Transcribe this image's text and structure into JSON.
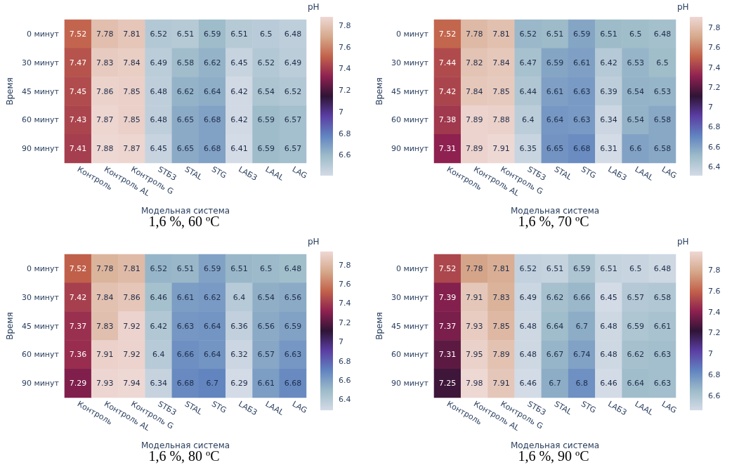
{
  "chart_data": [
    {
      "type": "heatmap",
      "title": "1,6 %, 60 ºC",
      "xlabel": "Модельная система",
      "ylabel": "Время",
      "clabel": "pH",
      "categories": [
        "Контроль",
        "Контроль AL",
        "Контроль G",
        "STБЗ",
        "STAL",
        "STG",
        "LAБЗ",
        "LAAL",
        "LAG"
      ],
      "y_categories": [
        "0 минут",
        "30 минут",
        "45 минут",
        "60 минут",
        "90 минут"
      ],
      "cells": [
        [
          7.52,
          7.78,
          7.81,
          6.52,
          6.51,
          6.59,
          6.51,
          6.5,
          6.48
        ],
        [
          7.47,
          7.83,
          7.84,
          6.49,
          6.58,
          6.62,
          6.45,
          6.52,
          6.49
        ],
        [
          7.45,
          7.86,
          7.85,
          6.48,
          6.62,
          6.64,
          6.42,
          6.54,
          6.52
        ],
        [
          7.43,
          7.87,
          7.85,
          6.48,
          6.65,
          6.68,
          6.42,
          6.59,
          6.57
        ],
        [
          7.41,
          7.88,
          7.87,
          6.45,
          6.65,
          6.68,
          6.41,
          6.59,
          6.57
        ]
      ],
      "clim": [
        6.41,
        7.88
      ],
      "cticks": [
        6.6,
        6.8,
        7,
        7.2,
        7.4,
        7.6,
        7.8
      ],
      "colors": [
        "#d3dbe6",
        "#9dbbc9",
        "#6184c0",
        "#5b3ea3",
        "#2f1436",
        "#8e2150",
        "#c2624b",
        "#d6a98c",
        "#eed8d4"
      ],
      "data_labels": true
    },
    {
      "type": "heatmap",
      "title": "1,6 %, 70 ºC",
      "xlabel": "Модельная система",
      "ylabel": "Время",
      "clabel": "pH",
      "categories": [
        "Контроль",
        "Контроль AL",
        "Контроль G",
        "STБЗ",
        "STAL",
        "STG",
        "LAБЗ",
        "LAAL",
        "LAG"
      ],
      "y_categories": [
        "0 минут",
        "30 минут",
        "45 минут",
        "60 минут",
        "90 минут"
      ],
      "cells": [
        [
          7.52,
          7.78,
          7.81,
          6.52,
          6.51,
          6.59,
          6.51,
          6.5,
          6.48
        ],
        [
          7.44,
          7.82,
          7.84,
          6.47,
          6.59,
          6.61,
          6.42,
          6.53,
          6.5
        ],
        [
          7.42,
          7.84,
          7.85,
          6.44,
          6.61,
          6.63,
          6.39,
          6.54,
          6.53
        ],
        [
          7.38,
          7.89,
          7.88,
          6.4,
          6.64,
          6.63,
          6.34,
          6.54,
          6.58
        ],
        [
          7.31,
          7.89,
          7.91,
          6.35,
          6.65,
          6.68,
          6.31,
          6.6,
          6.58
        ]
      ],
      "clim": [
        6.31,
        7.91
      ],
      "cticks": [
        6.4,
        6.6,
        6.8,
        7,
        7.2,
        7.4,
        7.6,
        7.8
      ],
      "colors": [
        "#d3dbe6",
        "#9dbbc9",
        "#6184c0",
        "#5b3ea3",
        "#2f1436",
        "#8e2150",
        "#c2624b",
        "#d6a98c",
        "#eed8d4"
      ],
      "data_labels": true
    },
    {
      "type": "heatmap",
      "title": "1,6 %, 80 ºC",
      "xlabel": "Модельная система",
      "ylabel": "Время",
      "clabel": "pH",
      "categories": [
        "Контроль",
        "Контроль AL",
        "Контроль G",
        "STБЗ",
        "STAL",
        "STG",
        "LAБЗ",
        "LAAL",
        "LAG"
      ],
      "y_categories": [
        "0 минут",
        "30 минут",
        "45 минут",
        "60 минут",
        "90 минут"
      ],
      "cells": [
        [
          7.52,
          7.78,
          7.81,
          6.52,
          6.51,
          6.59,
          6.51,
          6.5,
          6.48
        ],
        [
          7.42,
          7.84,
          7.86,
          6.46,
          6.61,
          6.62,
          6.4,
          6.54,
          6.56
        ],
        [
          7.37,
          7.83,
          7.92,
          6.42,
          6.63,
          6.64,
          6.36,
          6.56,
          6.59
        ],
        [
          7.36,
          7.91,
          7.92,
          6.4,
          6.66,
          6.64,
          6.32,
          6.57,
          6.63
        ],
        [
          7.29,
          7.93,
          7.94,
          6.34,
          6.68,
          6.7,
          6.29,
          6.61,
          6.68
        ]
      ],
      "clim": [
        6.29,
        7.94
      ],
      "cticks": [
        6.4,
        6.6,
        6.8,
        7,
        7.2,
        7.4,
        7.6,
        7.8
      ],
      "colors": [
        "#d3dbe6",
        "#9dbbc9",
        "#6184c0",
        "#5b3ea3",
        "#2f1436",
        "#8e2150",
        "#c2624b",
        "#d6a98c",
        "#eed8d4"
      ],
      "data_labels": true
    },
    {
      "type": "heatmap",
      "title": "1,6 %, 90 ºC",
      "xlabel": "Модельная система",
      "ylabel": "Время",
      "clabel": "pH",
      "categories": [
        "Контроль",
        "Контроль AL",
        "Контроль G",
        "STБЗ",
        "STAL",
        "STG",
        "LAБЗ",
        "LAAL",
        "LAG"
      ],
      "y_categories": [
        "0 минут",
        "30 минут",
        "45 минут",
        "60 минут",
        "90 минут"
      ],
      "cells": [
        [
          7.52,
          7.78,
          7.81,
          6.52,
          6.51,
          6.59,
          6.51,
          6.5,
          6.48
        ],
        [
          7.39,
          7.91,
          7.83,
          6.49,
          6.62,
          6.66,
          6.45,
          6.57,
          6.58
        ],
        [
          7.37,
          7.93,
          7.85,
          6.48,
          6.64,
          6.7,
          6.48,
          6.59,
          6.61
        ],
        [
          7.31,
          7.95,
          7.89,
          6.48,
          6.67,
          6.74,
          6.48,
          6.62,
          6.63
        ],
        [
          7.25,
          7.98,
          7.91,
          6.46,
          6.7,
          6.8,
          6.46,
          6.64,
          6.63
        ]
      ],
      "clim": [
        6.46,
        7.98
      ],
      "cticks": [
        6.6,
        6.8,
        7,
        7.2,
        7.4,
        7.6,
        7.8
      ],
      "colors": [
        "#d3dbe6",
        "#9dbbc9",
        "#6184c0",
        "#5b3ea3",
        "#2f1436",
        "#8e2150",
        "#c2624b",
        "#d6a98c",
        "#eed8d4"
      ],
      "data_labels": true
    }
  ]
}
